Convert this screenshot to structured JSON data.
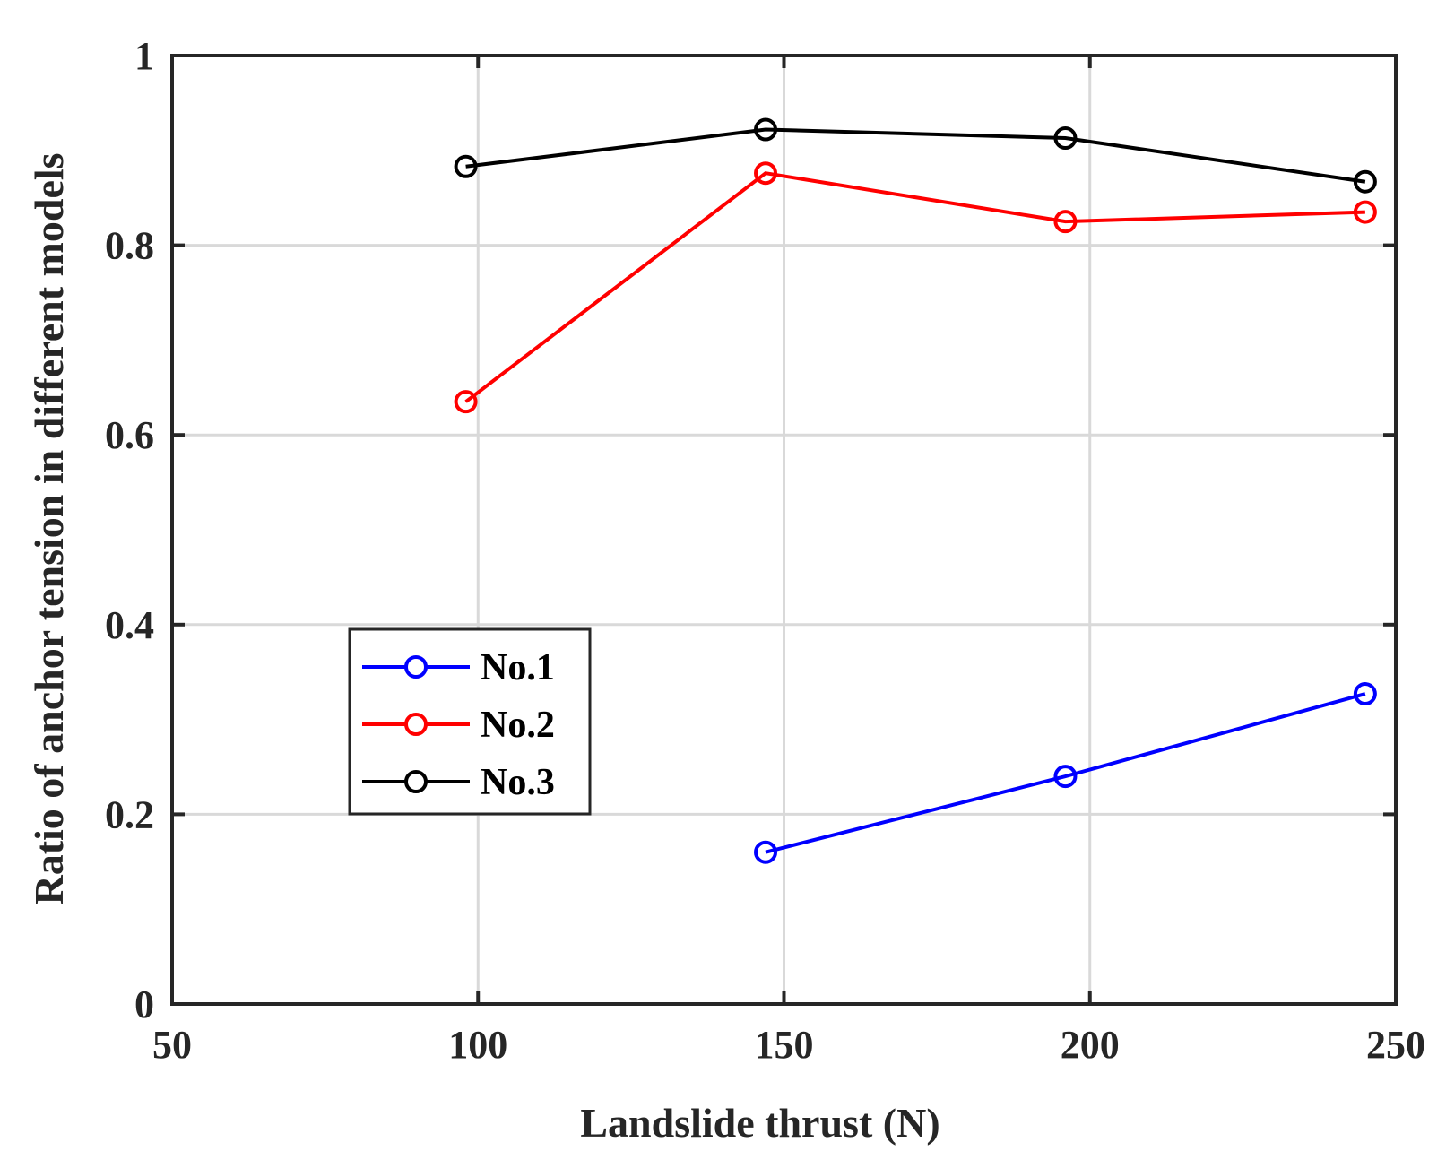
{
  "chart_data": {
    "type": "line",
    "title": "",
    "xlabel": "Landslide thrust (N)",
    "ylabel": "Ratio of anchor tension in different models",
    "xlim": [
      50,
      250
    ],
    "ylim": [
      0,
      1
    ],
    "xticks": [
      50,
      100,
      150,
      200,
      250
    ],
    "yticks": [
      0,
      0.2,
      0.4,
      0.6,
      0.8,
      1
    ],
    "xtick_labels": [
      "50",
      "100",
      "150",
      "200",
      "250"
    ],
    "ytick_labels": [
      "0",
      "0.2",
      "0.4",
      "0.6",
      "0.8",
      "1"
    ],
    "grid": true,
    "legend_position": "lower-left",
    "series": [
      {
        "name": "No.1",
        "color": "#0000ff",
        "x": [
          147,
          196,
          245
        ],
        "y": [
          0.16,
          0.24,
          0.327
        ]
      },
      {
        "name": "No.2",
        "color": "#ff0000",
        "x": [
          98,
          147,
          196,
          245
        ],
        "y": [
          0.635,
          0.876,
          0.825,
          0.835
        ]
      },
      {
        "name": "No.3",
        "color": "#000000",
        "x": [
          98,
          147,
          196,
          245
        ],
        "y": [
          0.883,
          0.922,
          0.913,
          0.867
        ]
      }
    ]
  }
}
